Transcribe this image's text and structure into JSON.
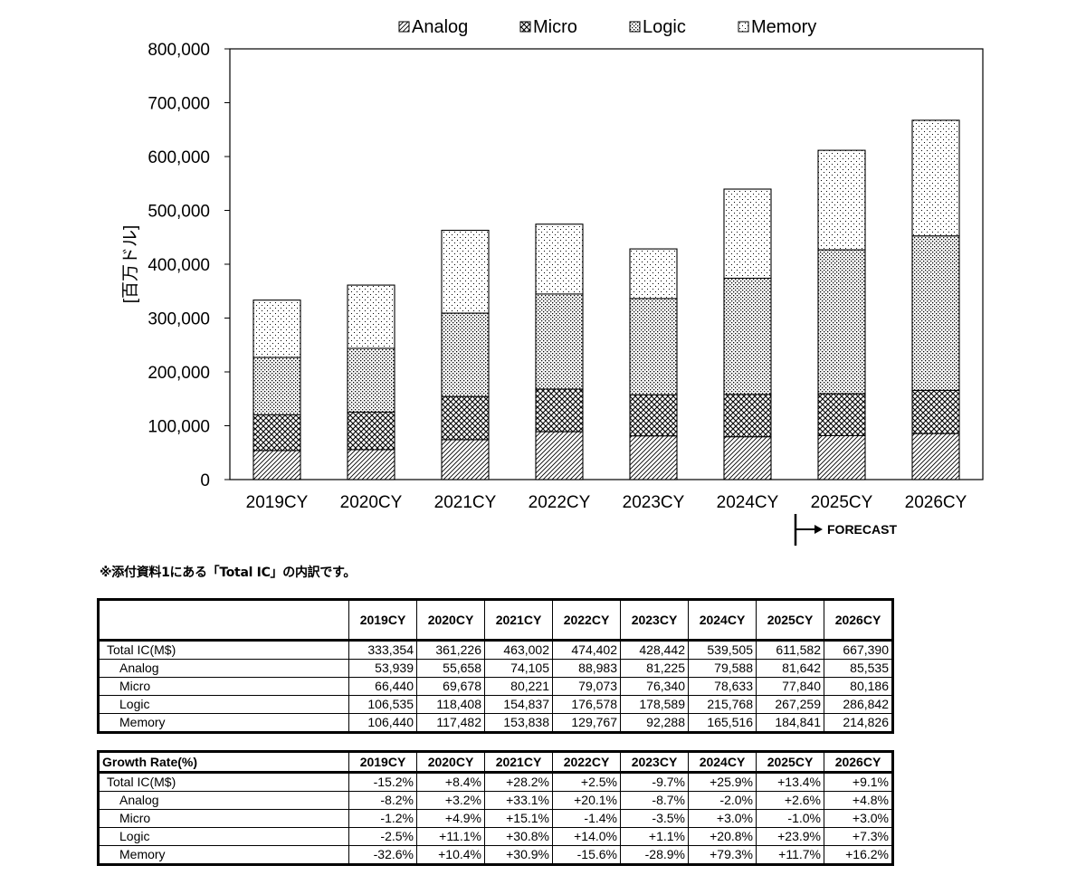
{
  "chart_data": {
    "type": "bar",
    "stacked": true,
    "categories": [
      "2019CY",
      "2020CY",
      "2021CY",
      "2022CY",
      "2023CY",
      "2024CY",
      "2025CY",
      "2026CY"
    ],
    "series": [
      {
        "name": "Analog",
        "values": [
          53939,
          55658,
          74105,
          88983,
          81225,
          79588,
          81642,
          85535
        ]
      },
      {
        "name": "Micro",
        "values": [
          66440,
          69678,
          80221,
          79073,
          76340,
          78633,
          77840,
          80186
        ]
      },
      {
        "name": "Logic",
        "values": [
          106535,
          118408,
          154837,
          176578,
          178589,
          215768,
          267259,
          286842
        ]
      },
      {
        "name": "Memory",
        "values": [
          106440,
          117482,
          153838,
          129767,
          92288,
          165516,
          184841,
          214826
        ]
      }
    ],
    "ylabel": "[百万ドル]",
    "ylim": [
      0,
      800000
    ],
    "yticks": [
      "0",
      "100,000",
      "200,000",
      "300,000",
      "400,000",
      "500,000",
      "600,000",
      "700,000",
      "800,000"
    ],
    "legend": "top",
    "forecast_label": "FORECAST",
    "forecast_from": "2025CY"
  },
  "note": "※添付資料1にある「Total IC」の内訳です。",
  "table1": {
    "headers": [
      "2019CY",
      "2020CY",
      "2021CY",
      "2022CY",
      "2023CY",
      "2024CY",
      "2025CY",
      "2026CY"
    ],
    "rows": [
      {
        "label": "Total IC(M$)",
        "values": [
          "333,354",
          "361,226",
          "463,002",
          "474,402",
          "428,442",
          "539,505",
          "611,582",
          "667,390"
        ]
      },
      {
        "label": "Analog",
        "values": [
          "53,939",
          "55,658",
          "74,105",
          "88,983",
          "81,225",
          "79,588",
          "81,642",
          "85,535"
        ]
      },
      {
        "label": "Micro",
        "values": [
          "66,440",
          "69,678",
          "80,221",
          "79,073",
          "76,340",
          "78,633",
          "77,840",
          "80,186"
        ]
      },
      {
        "label": "Logic",
        "values": [
          "106,535",
          "118,408",
          "154,837",
          "176,578",
          "178,589",
          "215,768",
          "267,259",
          "286,842"
        ]
      },
      {
        "label": "Memory",
        "values": [
          "106,440",
          "117,482",
          "153,838",
          "129,767",
          "92,288",
          "165,516",
          "184,841",
          "214,826"
        ]
      }
    ]
  },
  "table2": {
    "title": "Growth Rate(%)",
    "headers": [
      "2019CY",
      "2020CY",
      "2021CY",
      "2022CY",
      "2023CY",
      "2024CY",
      "2025CY",
      "2026CY"
    ],
    "rows": [
      {
        "label": "Total IC(M$)",
        "values": [
          "-15.2%",
          "+8.4%",
          "+28.2%",
          "+2.5%",
          "-9.7%",
          "+25.9%",
          "+13.4%",
          "+9.1%"
        ]
      },
      {
        "label": "Analog",
        "values": [
          "-8.2%",
          "+3.2%",
          "+33.1%",
          "+20.1%",
          "-8.7%",
          "-2.0%",
          "+2.6%",
          "+4.8%"
        ]
      },
      {
        "label": "Micro",
        "values": [
          "-1.2%",
          "+4.9%",
          "+15.1%",
          "-1.4%",
          "-3.5%",
          "+3.0%",
          "-1.0%",
          "+3.0%"
        ]
      },
      {
        "label": "Logic",
        "values": [
          "-2.5%",
          "+11.1%",
          "+30.8%",
          "+14.0%",
          "+1.1%",
          "+20.8%",
          "+23.9%",
          "+7.3%"
        ]
      },
      {
        "label": "Memory",
        "values": [
          "-32.6%",
          "+10.4%",
          "+30.9%",
          "-15.6%",
          "-28.9%",
          "+79.3%",
          "+11.7%",
          "+16.2%"
        ]
      }
    ]
  }
}
